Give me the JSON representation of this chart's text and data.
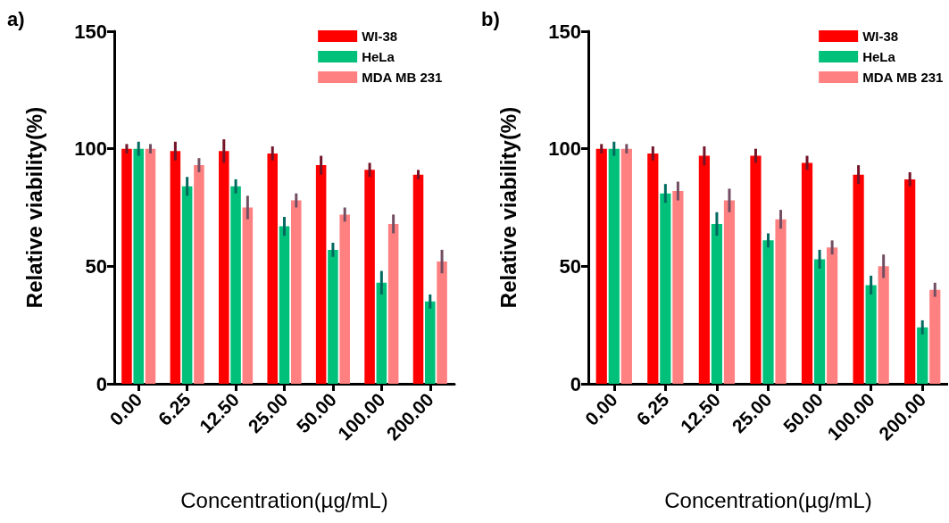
{
  "chart_data": [
    {
      "type": "bar",
      "annotations": [
        "a)"
      ],
      "xlabel": "Concentration(µg/mL)",
      "ylabel": "Relative viability(%)",
      "categories": [
        "0.00",
        "6.25",
        "12.50",
        "25.00",
        "50.00",
        "100.00",
        "200.00"
      ],
      "ylim": [
        0,
        150
      ],
      "yticks": [
        0,
        50,
        100,
        150
      ],
      "legend": "top right",
      "series": [
        {
          "name": "WI-38",
          "color": "#ff0000",
          "values": [
            100,
            99,
            99,
            98,
            93,
            91,
            89
          ],
          "errors": [
            2,
            4,
            5,
            3,
            4,
            3,
            2
          ]
        },
        {
          "name": "HeLa",
          "color": "#00c07a",
          "values": [
            100,
            84,
            84,
            67,
            57,
            43,
            35
          ],
          "errors": [
            3,
            4,
            3,
            4,
            3,
            5,
            3
          ]
        },
        {
          "name": "MDA MB 231",
          "color": "#ff8080",
          "values": [
            100,
            93,
            75,
            78,
            72,
            68,
            52
          ],
          "errors": [
            2,
            3,
            5,
            3,
            3,
            4,
            5
          ]
        }
      ]
    },
    {
      "type": "bar",
      "annotations": [
        "b)"
      ],
      "xlabel": "Concentration(µg/mL)",
      "ylabel": "Relative viability(%)",
      "categories": [
        "0.00",
        "6.25",
        "12.50",
        "25.00",
        "50.00",
        "100.00",
        "200.00"
      ],
      "ylim": [
        0,
        150
      ],
      "yticks": [
        0,
        50,
        100,
        150
      ],
      "legend": "top right",
      "series": [
        {
          "name": "WI-38",
          "color": "#ff0000",
          "values": [
            100,
            98,
            97,
            97,
            94,
            89,
            87
          ],
          "errors": [
            2,
            3,
            4,
            3,
            3,
            4,
            3
          ]
        },
        {
          "name": "HeLa",
          "color": "#00c07a",
          "values": [
            100,
            81,
            68,
            61,
            53,
            42,
            24
          ],
          "errors": [
            3,
            4,
            5,
            3,
            4,
            4,
            3
          ]
        },
        {
          "name": "MDA MB 231",
          "color": "#ff8080",
          "values": [
            100,
            82,
            78,
            70,
            58,
            50,
            40
          ],
          "errors": [
            2,
            4,
            5,
            4,
            3,
            5,
            3
          ]
        }
      ]
    }
  ]
}
